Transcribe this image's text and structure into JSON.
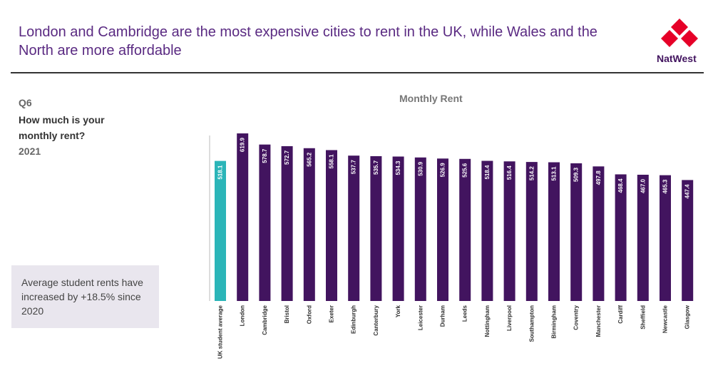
{
  "header": {
    "title": "London and Cambridge are the most expensive cities to rent in the UK, while Wales and the North are more affordable",
    "brand": "NatWest"
  },
  "question": {
    "code": "Q6",
    "text": "How much is your monthly rent?",
    "year": "2021"
  },
  "callout": {
    "text": "Average student rents have increased by +18.5% since 2020"
  },
  "colors": {
    "highlight": "#2bb5b8",
    "bar": "#42145f",
    "brand_red": "#e60028"
  },
  "chart_data": {
    "type": "bar",
    "title": "Monthly Rent",
    "categories": [
      "UK student average",
      "London",
      "Cambridge",
      "Bristol",
      "Oxford",
      "Exeter",
      "Edinburgh",
      "Canterbury",
      "York",
      "Leicester",
      "Durham",
      "Leeds",
      "Nottingham",
      "Liverpool",
      "Southampton",
      "Birmingham",
      "Coventry",
      "Manchester",
      "Cardiff",
      "Sheffield",
      "Newcastle",
      "Glasgow"
    ],
    "values": [
      518.1,
      619.9,
      578.7,
      572.7,
      565.2,
      558.1,
      537.7,
      535.7,
      534.3,
      530.9,
      526.9,
      525.6,
      518.4,
      516.4,
      514.2,
      513.1,
      509.3,
      497.8,
      468.4,
      467.0,
      465.3,
      447.4
    ],
    "value_labels": [
      "518.1",
      "619.9",
      "578.7",
      "572.7",
      "565.2",
      "558.1",
      "537.7",
      "535.7",
      "534.3",
      "530.9",
      "526.9",
      "525.6",
      "518.4",
      "516.4",
      "514.2",
      "513.1",
      "509.3",
      "497.8",
      "468.4",
      "467.0",
      "465.3",
      "447.4"
    ],
    "highlight_index": 0,
    "ylim": [
      0,
      620
    ],
    "grid": false,
    "legend": "none"
  }
}
